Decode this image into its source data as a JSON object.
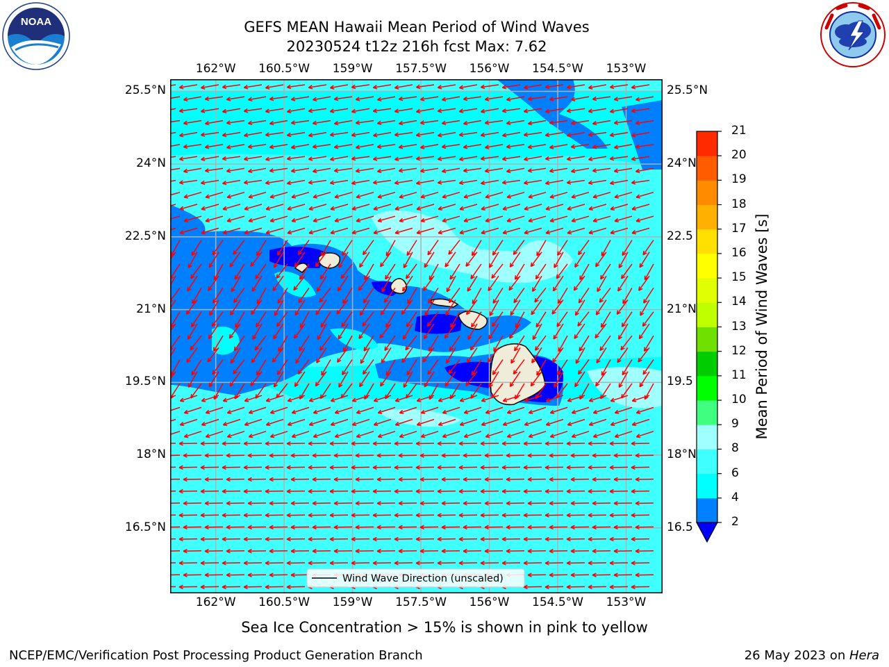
{
  "header": {
    "title_line1": "GEFS MEAN Hawaii Mean Period of Wind Waves",
    "title_line2": "20230524 t12z 216h fcst   Max: 7.62"
  },
  "logos": {
    "left": {
      "icon": "noaa-logo",
      "text": "NOAA",
      "ring_text": "NATIONAL OCEANIC AND ATMOSPHERIC ADMINISTRATION · U.S. DEPARTMENT OF COMMERCE"
    },
    "right": {
      "icon": "nws-logo",
      "ring_text": "NATIONAL WEATHER SERVICE"
    }
  },
  "map": {
    "lon_labels": [
      "162°W",
      "160.5°W",
      "159°W",
      "157.5°W",
      "156°W",
      "154.5°W",
      "153°W"
    ],
    "lat_labels_left": [
      "25.5°N",
      "24°N",
      "22.5°N",
      "21°N",
      "19.5°N",
      "18°N",
      "16.5°N"
    ],
    "lat_labels_right": [
      "25.5°N",
      "24°N",
      "22.5",
      "21°N",
      "19.5",
      "18°N",
      "16.5"
    ],
    "lons": [
      -162,
      -160.5,
      -159,
      -157.5,
      -156,
      -154.5,
      -153
    ],
    "lats": [
      25.5,
      24,
      22.5,
      21,
      19.5,
      18,
      16.5
    ],
    "extent": {
      "lon_min": -163.0,
      "lon_max": -152.2,
      "lat_min": 15.15,
      "lat_max": 25.75
    },
    "legend_label": "Wind Wave Direction (unscaled)",
    "arrow_color": "#ff0000",
    "land_color": "#efedda",
    "background_color": "#00ffff"
  },
  "colorbar": {
    "label": "Mean Period of Wind Waves [s]",
    "levels": [
      2,
      4,
      6,
      8,
      9,
      10,
      11,
      12,
      13,
      14,
      15,
      16,
      17,
      18,
      19,
      20,
      21
    ],
    "colors": [
      "#0080ff",
      "#00ffff",
      "#40ffff",
      "#a0ffff",
      "#40ff80",
      "#00ff00",
      "#00cc00",
      "#70e000",
      "#c0ff00",
      "#e0ff00",
      "#ffff00",
      "#ffe000",
      "#ffb000",
      "#ff8c00",
      "#ff5c00",
      "#ff2a00",
      "#ff0000"
    ],
    "under_color": "#0000ff"
  },
  "footer": {
    "note": "Sea Ice Concentration > 15% is shown in pink to yellow",
    "left": "NCEP/EMC/Verification Post Processing Product Generation Branch",
    "right_prefix": "26 May 2023 on ",
    "right_machine": "Hera"
  }
}
